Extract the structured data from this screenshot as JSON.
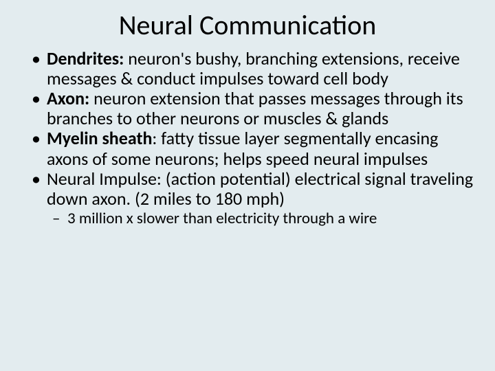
{
  "slide": {
    "background_color": "#e3ecef",
    "text_color": "#000000",
    "title": {
      "text": "Neural Communication",
      "fontsize": 40,
      "font_weight": 400
    },
    "body_fontsize": 26,
    "line_height": 1.12,
    "bullets": [
      {
        "term": "Dendrites: ",
        "desc": "neuron's bushy, branching extensions, receive messages & conduct impulses toward cell body"
      },
      {
        "term": "Axon: ",
        "desc": "neuron extension that passes messages through its branches to other neurons or muscles & glands"
      },
      {
        "term": "Myelin sheath",
        "desc": ": fatty tissue layer segmentally encasing axons of some neurons; helps speed neural impulses"
      },
      {
        "term": "",
        "desc": "Neural Impulse: (action potential) electrical signal traveling down axon. (2 miles to 180 mph)",
        "sub": [
          "3 million x slower than electricity through a wire"
        ]
      }
    ],
    "sub_fontsize": 23
  }
}
